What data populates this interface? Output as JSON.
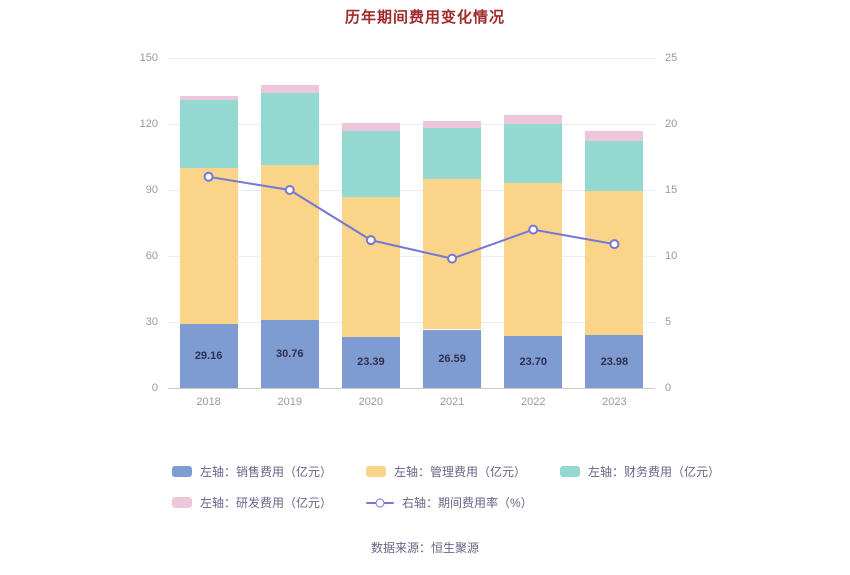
{
  "title": "历年期间费用变化情况",
  "footer": {
    "source": "数据来源：恒生聚源"
  },
  "colors": {
    "title": "#9e2a2a",
    "axis_text": "#999999",
    "grid": "#ebebf0",
    "baseline": "#cccccc",
    "bar_label": "#2f2f4f",
    "legend_text": "#666688",
    "sales": "#7e9bd2",
    "management": "#fad489",
    "finance": "#93d9d2",
    "rd": "#eec6dc",
    "line": "#7577d4"
  },
  "chart_data": {
    "type": "bar",
    "title": "历年期间费用变化情况",
    "categories": [
      "2018",
      "2019",
      "2020",
      "2021",
      "2022",
      "2023"
    ],
    "left_axis": {
      "label": "亿元",
      "min": 0,
      "max": 150,
      "ticks": [
        0,
        30,
        60,
        90,
        120,
        150
      ]
    },
    "right_axis": {
      "label": "%",
      "min": 0,
      "max": 25,
      "ticks": [
        0,
        5,
        10,
        15,
        20,
        25
      ]
    },
    "grid": true,
    "legend_position": "bottom",
    "series": [
      {
        "name": "左轴：销售费用（亿元）",
        "key": "sales",
        "type": "bar",
        "axis": "left",
        "values": [
          29.16,
          30.76,
          23.39,
          26.59,
          23.7,
          23.98
        ],
        "labels": [
          "29.16",
          "30.76",
          "23.39",
          "26.59",
          "23.70",
          "23.98"
        ]
      },
      {
        "name": "左轴：管理费用（亿元）",
        "key": "management",
        "type": "bar",
        "axis": "left",
        "values": [
          71.0,
          70.5,
          63.6,
          68.4,
          69.3,
          65.5
        ]
      },
      {
        "name": "左轴：财务费用（亿元）",
        "key": "finance",
        "type": "bar",
        "axis": "left",
        "values": [
          30.9,
          33.0,
          30.0,
          23.0,
          27.0,
          23.0
        ]
      },
      {
        "name": "左轴：研发费用（亿元）",
        "key": "rd",
        "type": "bar",
        "axis": "left",
        "values": [
          1.5,
          3.5,
          3.5,
          3.5,
          4.0,
          4.5
        ]
      },
      {
        "name": "右轴：期间费用率（%）",
        "key": "line",
        "type": "line",
        "axis": "right",
        "values": [
          16.0,
          15.0,
          11.2,
          9.8,
          12.0,
          10.9
        ]
      }
    ]
  },
  "legend": {
    "rows": [
      [
        {
          "key": "sales",
          "label": "左轴：销售费用（亿元）"
        },
        {
          "key": "management",
          "label": "左轴：管理费用（亿元）"
        },
        {
          "key": "finance",
          "label": "左轴：财务费用（亿元）"
        }
      ],
      [
        {
          "key": "rd",
          "label": "左轴：研发费用（亿元）"
        },
        {
          "key": "line",
          "label": "右轴：期间费用率（%）",
          "type": "line"
        }
      ]
    ]
  }
}
